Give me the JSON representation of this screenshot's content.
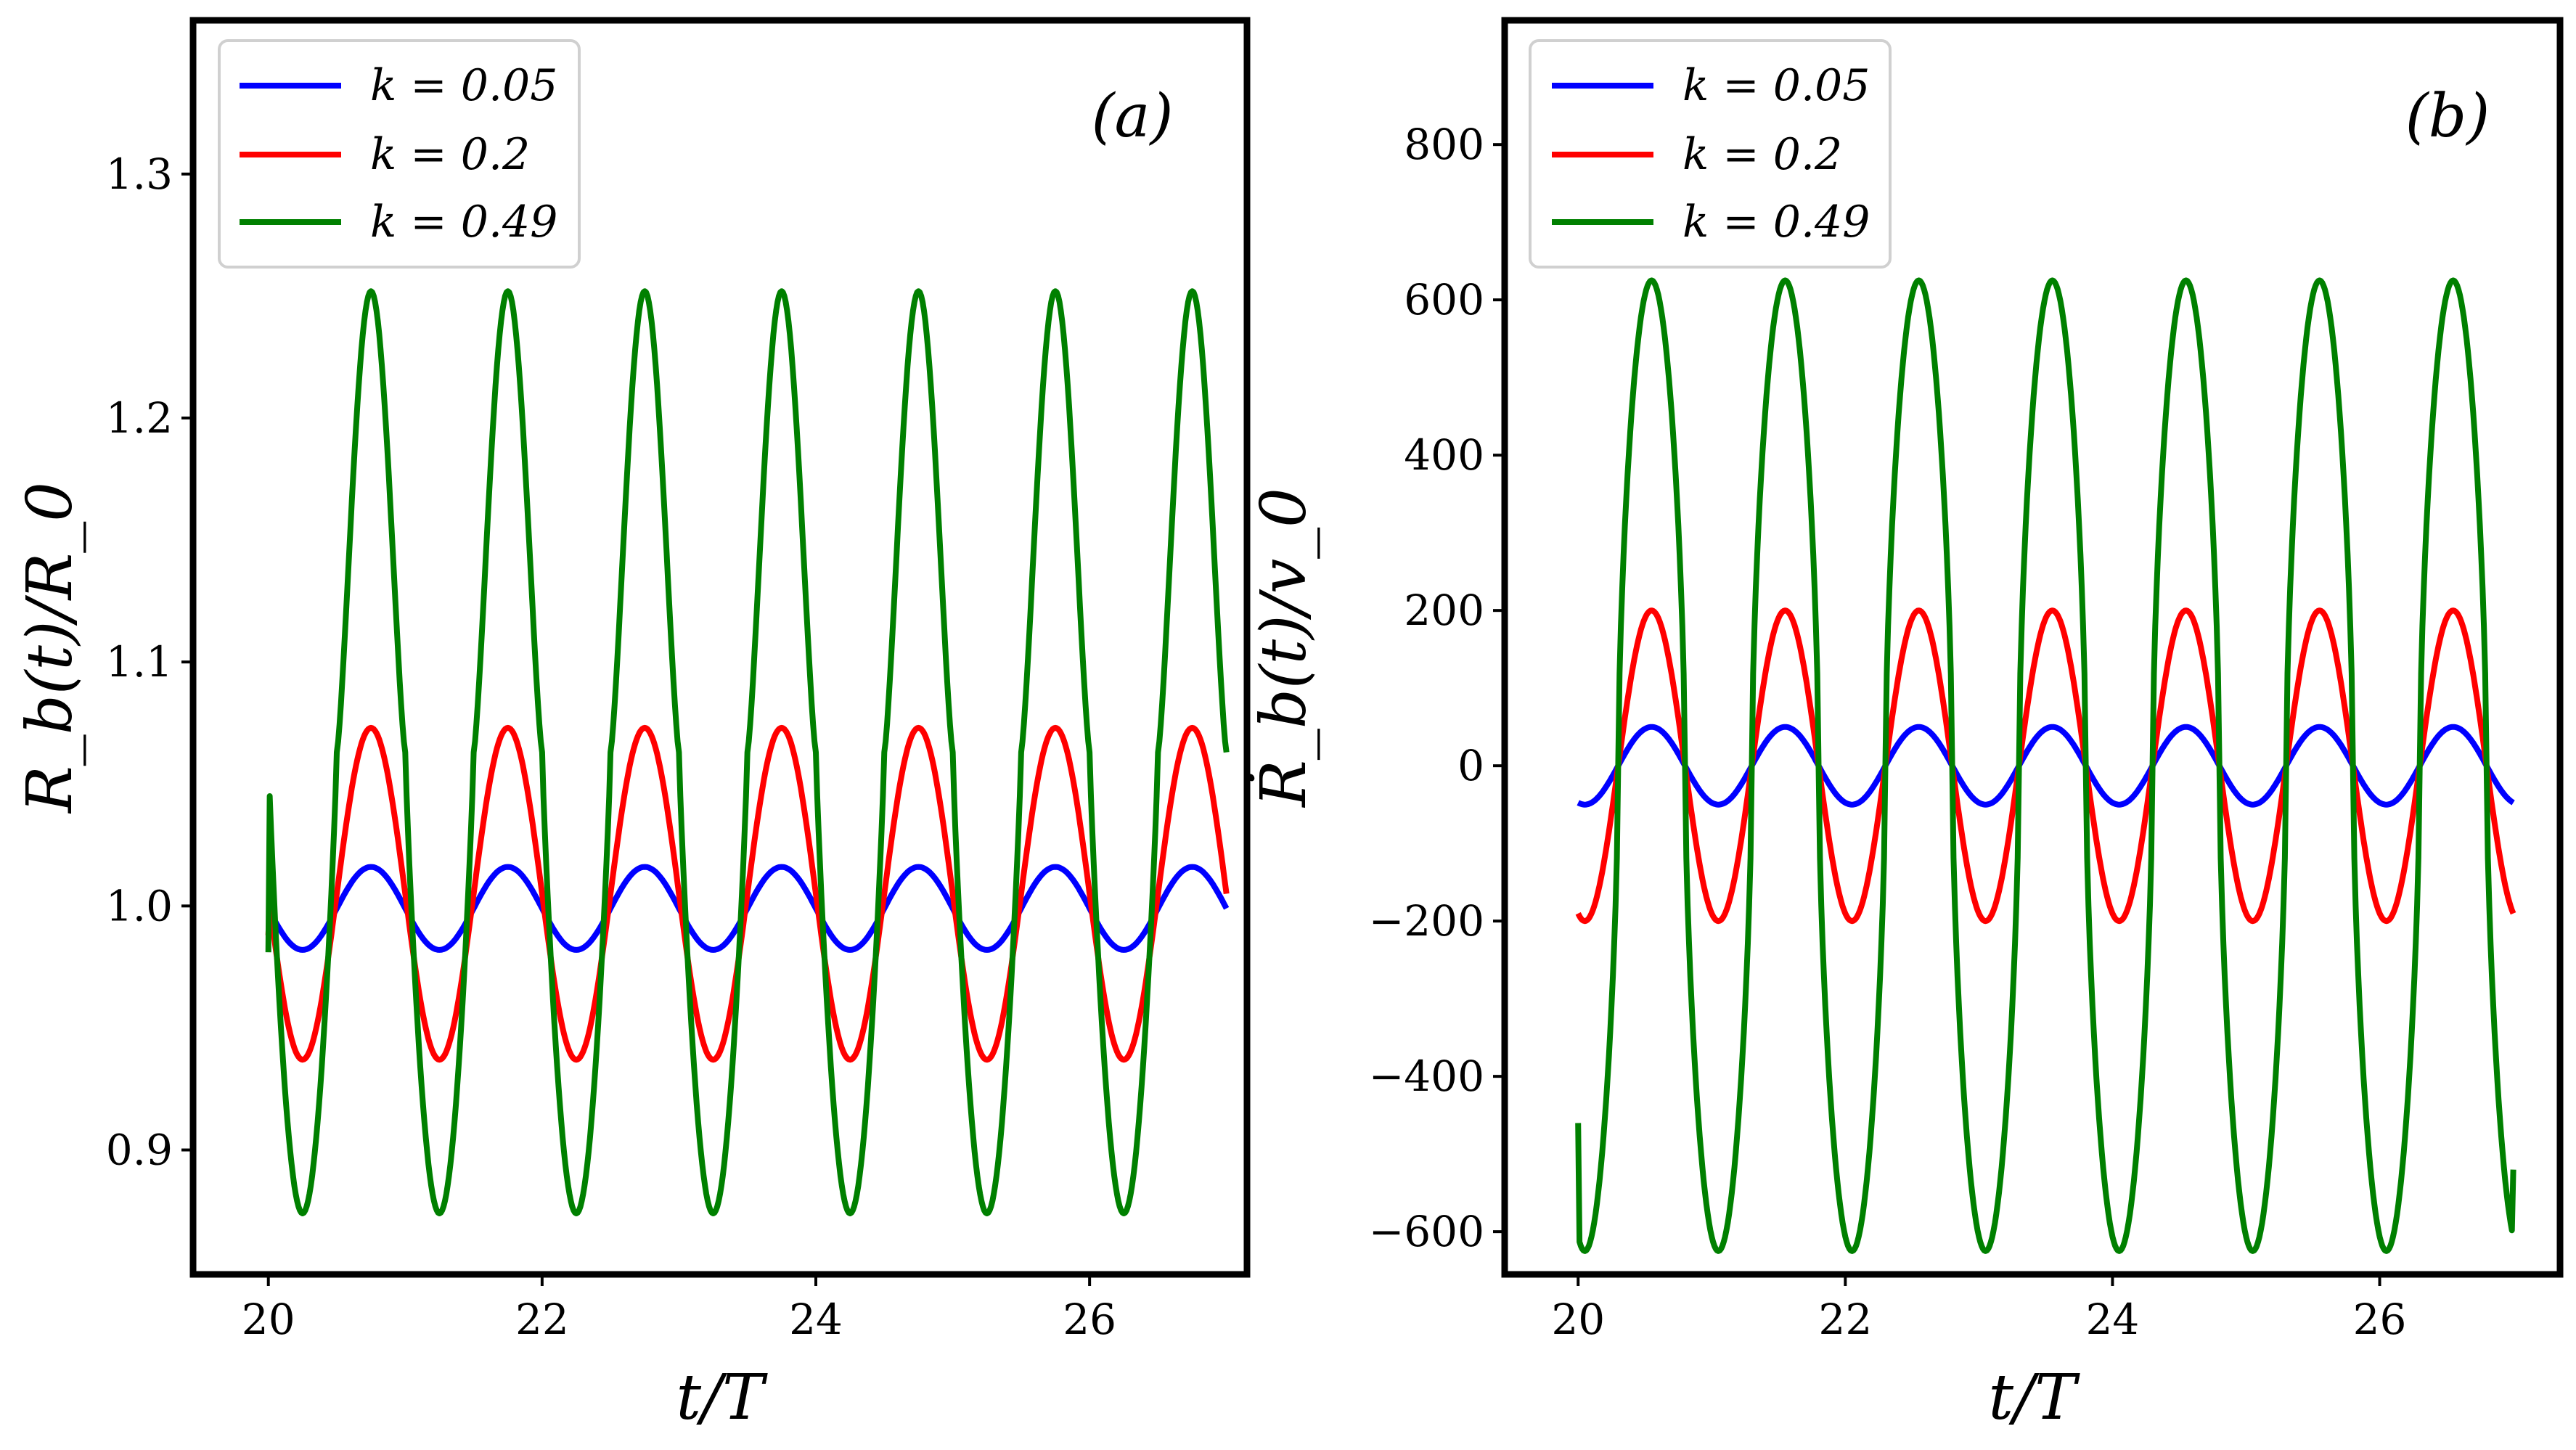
{
  "chart_data": [
    {
      "type": "line",
      "panel_label": "(a)",
      "xlabel": "t/T",
      "ylabel": "R_b(t)/R_0",
      "xlim": [
        19.45,
        27.15
      ],
      "ylim": [
        0.849,
        1.363
      ],
      "xticks": [
        20,
        22,
        24,
        26
      ],
      "xtick_labels": [
        "20",
        "22",
        "24",
        "26"
      ],
      "yticks": [
        0.9,
        1.0,
        1.1,
        1.2,
        1.3
      ],
      "ytick_labels": [
        "0.9",
        "1.0",
        "1.1",
        "1.2",
        "1.3"
      ],
      "legend_position": "top-left",
      "x_range": [
        20.0,
        27.0
      ],
      "series": [
        {
          "name": "k = 0.05",
          "color": "#0000ff",
          "mean": 0.999,
          "amplitude": 0.017,
          "period": 1.0,
          "phase_peak": 20.75,
          "start_value": 0.997
        },
        {
          "name": "k = 0.2",
          "color": "#ff0000",
          "mean": 1.005,
          "amplitude": 0.068,
          "period": 1.0,
          "phase_peak": 20.75,
          "start_value": 0.988
        },
        {
          "name": "k = 0.49",
          "color": "#008000",
          "mean": 1.063,
          "amplitude": 0.189,
          "period": 1.0,
          "phase_peak": 20.75,
          "start_value": 0.981
        }
      ]
    },
    {
      "type": "line",
      "panel_label": "(b)",
      "xlabel": "t/T",
      "ylabel": "Ṙ_b(t)/v_0",
      "xlim": [
        19.45,
        27.35
      ],
      "ylim": [
        -655,
        960
      ],
      "xticks": [
        20,
        22,
        24,
        26
      ],
      "xtick_labels": [
        "20",
        "22",
        "24",
        "26"
      ],
      "yticks": [
        -600,
        -400,
        -200,
        0,
        200,
        400,
        600,
        800
      ],
      "ytick_labels": [
        "−600",
        "−400",
        "−200",
        "0",
        "200",
        "400",
        "600",
        "800"
      ],
      "legend_position": "top-left",
      "x_range": [
        20.0,
        27.0
      ],
      "series": [
        {
          "name": "k = 0.05",
          "color": "#0000ff",
          "amplitude": 50,
          "period": 1.0,
          "phase_peak": 20.55
        },
        {
          "name": "k = 0.2",
          "color": "#ff0000",
          "amplitude": 200,
          "period": 1.0,
          "phase_peak": 20.55
        },
        {
          "name": "k = 0.49",
          "color": "#008000",
          "amplitude": 625,
          "period": 1.0,
          "phase_peak": 20.55,
          "start_value": -460,
          "end_value": -520
        }
      ]
    }
  ]
}
